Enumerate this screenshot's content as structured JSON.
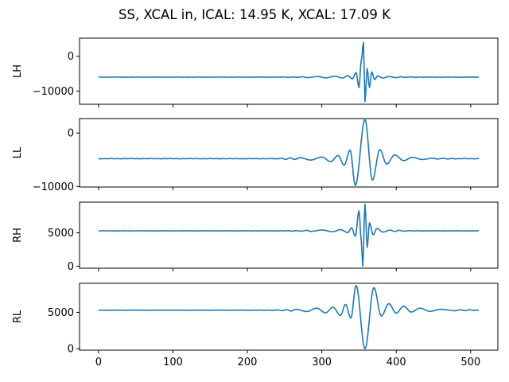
{
  "chart_data": [
    {
      "type": "line",
      "title": "SS, XCAL in, ICAL: 14.95 K, XCAL: 17.09 K",
      "ylabel": "LH",
      "color": "#1f77b4",
      "xlim": [
        -25.55,
        536.55
      ],
      "ylim": [
        -13800,
        5200
      ],
      "yticks": [
        0,
        -10000
      ],
      "ytick_labels": [
        "0",
        "−10000"
      ],
      "xticks": [
        0,
        100,
        200,
        300,
        400,
        500
      ],
      "xtick_labels": [],
      "baseline": -6000,
      "peaks": [
        [
          280,
          -120
        ],
        [
          295,
          180
        ],
        [
          305,
          -200
        ],
        [
          318,
          250
        ],
        [
          328,
          -250
        ],
        [
          335,
          450
        ],
        [
          341,
          -500
        ],
        [
          346,
          1300
        ],
        [
          350,
          -3000
        ],
        [
          353,
          4800
        ],
        [
          356,
          10000
        ],
        [
          358,
          -7000
        ],
        [
          361,
          2500
        ],
        [
          364,
          -3000
        ],
        [
          367,
          1500
        ],
        [
          371,
          -700
        ],
        [
          375,
          350
        ],
        [
          382,
          -250
        ],
        [
          390,
          180
        ],
        [
          400,
          -120
        ]
      ]
    },
    {
      "type": "line",
      "title": "",
      "ylabel": "LL",
      "color": "#1f77b4",
      "xlim": [
        -25.55,
        536.55
      ],
      "ylim": [
        -10100,
        2700
      ],
      "yticks": [
        0,
        -10000
      ],
      "ytick_labels": [
        "0",
        "−10000"
      ],
      "xticks": [
        0,
        100,
        200,
        300,
        400,
        500
      ],
      "xtick_labels": [],
      "baseline": -4800,
      "peaks": [
        [
          270,
          200
        ],
        [
          285,
          -250
        ],
        [
          300,
          300
        ],
        [
          312,
          -550
        ],
        [
          322,
          600
        ],
        [
          330,
          -1200
        ],
        [
          338,
          1600
        ],
        [
          345,
          -5000
        ],
        [
          358,
          7300
        ],
        [
          368,
          -4000
        ],
        [
          378,
          1700
        ],
        [
          387,
          -1000
        ],
        [
          398,
          700
        ],
        [
          410,
          -350
        ],
        [
          422,
          250
        ],
        [
          435,
          -150
        ],
        [
          450,
          100
        ]
      ]
    },
    {
      "type": "line",
      "title": "",
      "ylabel": "RH",
      "color": "#1f77b4",
      "xlim": [
        -25.55,
        536.55
      ],
      "ylim": [
        -300,
        9600
      ],
      "yticks": [
        0,
        5000
      ],
      "ytick_labels": [
        "0",
        "5000"
      ],
      "xticks": [
        0,
        100,
        200,
        300,
        400,
        500
      ],
      "xtick_labels": [],
      "baseline": 5300,
      "peaks": [
        [
          285,
          -80
        ],
        [
          300,
          120
        ],
        [
          315,
          -130
        ],
        [
          325,
          180
        ],
        [
          335,
          -250
        ],
        [
          340,
          450
        ],
        [
          345,
          -800
        ],
        [
          350,
          3000
        ],
        [
          353,
          -1500
        ],
        [
          355,
          -5300
        ],
        [
          358,
          4000
        ],
        [
          361,
          -2500
        ],
        [
          364,
          1200
        ],
        [
          369,
          -600
        ],
        [
          374,
          350
        ],
        [
          382,
          -180
        ],
        [
          392,
          100
        ]
      ]
    },
    {
      "type": "line",
      "title": "",
      "ylabel": "RL",
      "color": "#1f77b4",
      "xlim": [
        -25.55,
        536.55
      ],
      "ylim": [
        -200,
        9000
      ],
      "yticks": [
        0,
        5000
      ],
      "ytick_labels": [
        "0",
        "5000"
      ],
      "xticks": [
        0,
        100,
        200,
        300,
        400,
        500
      ],
      "xtick_labels": [
        "0",
        "100",
        "200",
        "300",
        "400",
        "500"
      ],
      "baseline": 5300,
      "peaks": [
        [
          265,
          120
        ],
        [
          280,
          -180
        ],
        [
          293,
          280
        ],
        [
          305,
          -350
        ],
        [
          315,
          400
        ],
        [
          325,
          -700
        ],
        [
          332,
          800
        ],
        [
          339,
          -1100
        ],
        [
          346,
          3400
        ],
        [
          358,
          -5300
        ],
        [
          370,
          3100
        ],
        [
          380,
          -800
        ],
        [
          390,
          900
        ],
        [
          400,
          -400
        ],
        [
          410,
          550
        ],
        [
          420,
          -250
        ],
        [
          432,
          280
        ],
        [
          445,
          -150
        ],
        [
          460,
          120
        ],
        [
          480,
          -80
        ]
      ]
    }
  ]
}
